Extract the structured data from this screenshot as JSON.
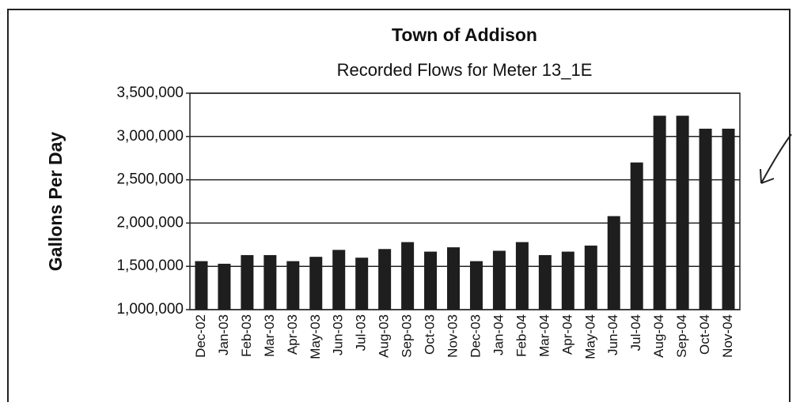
{
  "chart_data": {
    "type": "bar",
    "title": "Town of Addison",
    "subtitle": "Recorded Flows for Meter 13_1E",
    "y_label": "Gallons Per Day",
    "categories": [
      "Dec-02",
      "Jan-03",
      "Feb-03",
      "Mar-03",
      "Apr-03",
      "May-03",
      "Jun-03",
      "Jul-03",
      "Aug-03",
      "Sep-03",
      "Oct-03",
      "Nov-03",
      "Dec-03",
      "Jan-04",
      "Feb-04",
      "Mar-04",
      "Apr-04",
      "May-04",
      "Jun-04",
      "Jul-04",
      "Aug-04",
      "Sep-04",
      "Oct-04",
      "Nov-04"
    ],
    "values": [
      1560000,
      1530000,
      1630000,
      1630000,
      1560000,
      1610000,
      1690000,
      1600000,
      1700000,
      1780000,
      1670000,
      1720000,
      1560000,
      1680000,
      1780000,
      1630000,
      1670000,
      1740000,
      2080000,
      2700000,
      3240000,
      3240000,
      3090000,
      3090000
    ],
    "color": "#1e1e1e",
    "ylim": [
      1000000,
      3500000
    ],
    "yticks": [
      {
        "value": 1000000,
        "label": "1,000,000"
      },
      {
        "value": 1500000,
        "label": "1,500,000"
      },
      {
        "value": 2000000,
        "label": "2,000,000"
      },
      {
        "value": 2500000,
        "label": "2,500,000"
      },
      {
        "value": 3000000,
        "label": "3,000,000"
      },
      {
        "value": 3500000,
        "label": "3,500,000"
      }
    ],
    "grid": true
  }
}
